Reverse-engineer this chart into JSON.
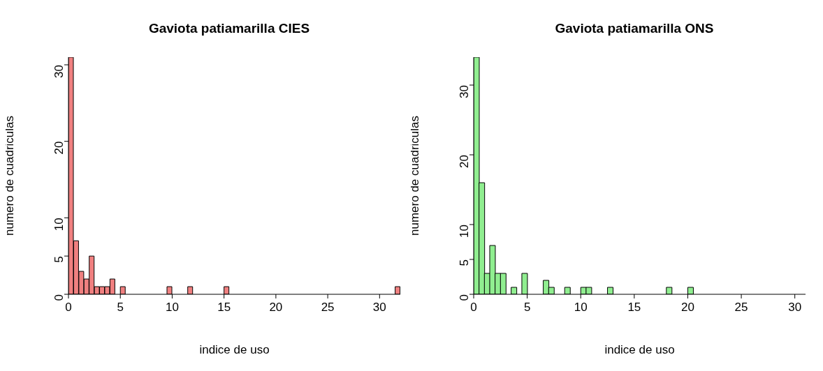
{
  "chart_data": [
    {
      "type": "histogram",
      "title": "Gaviota patiamarilla CIES",
      "xlabel": "indice de uso",
      "ylabel": "numero de cuadriculas",
      "color": "#f08080",
      "bins": [
        0,
        0.5,
        1,
        1.5,
        2,
        2.5,
        3,
        3.5,
        4,
        4.5,
        5,
        5.5,
        6,
        6.5,
        7,
        7.5,
        8,
        8.5,
        9,
        9.5,
        10,
        10.5,
        11,
        11.5,
        12,
        12.5,
        13,
        13.5,
        14,
        14.5,
        15,
        15.5,
        16,
        16.5,
        17,
        17.5,
        18,
        18.5,
        19,
        19.5,
        20,
        20.5,
        21,
        21.5,
        22,
        22.5,
        23,
        23.5,
        24,
        24.5,
        25,
        25.5,
        26,
        26.5,
        27,
        27.5,
        28,
        28.5,
        29,
        29.5,
        30,
        30.5,
        31,
        31.5,
        32
      ],
      "values": [
        31,
        7,
        3,
        2,
        5,
        1,
        1,
        1,
        2,
        0,
        1,
        0,
        0,
        0,
        0,
        0,
        0,
        0,
        0,
        1,
        0,
        0,
        0,
        1,
        0,
        0,
        0,
        0,
        0,
        0,
        1,
        0,
        0,
        0,
        0,
        0,
        0,
        0,
        0,
        0,
        0,
        0,
        0,
        0,
        0,
        0,
        0,
        0,
        0,
        0,
        0,
        0,
        0,
        0,
        0,
        0,
        0,
        0,
        0,
        0,
        0,
        0,
        0,
        1
      ],
      "xlim": [
        0,
        32
      ],
      "xticks": [
        0,
        5,
        10,
        15,
        20,
        25,
        30
      ],
      "ylim": [
        0,
        31
      ],
      "yticks": [
        0,
        5,
        10,
        20,
        30
      ]
    },
    {
      "type": "histogram",
      "title": "Gaviota patiamarilla ONS",
      "xlabel": "indice de uso",
      "ylabel": "numero de cuadriculas",
      "color": "#90ee90",
      "bins": [
        0,
        0.5,
        1,
        1.5,
        2,
        2.5,
        3,
        3.5,
        4,
        4.5,
        5,
        5.5,
        6,
        6.5,
        7,
        7.5,
        8,
        8.5,
        9,
        9.5,
        10,
        10.5,
        11,
        11.5,
        12,
        12.5,
        13,
        13.5,
        14,
        14.5,
        15,
        15.5,
        16,
        16.5,
        17,
        17.5,
        18,
        18.5,
        19,
        19.5,
        20,
        20.5,
        21,
        21.5,
        22,
        22.5,
        23,
        23.5,
        24,
        24.5,
        25,
        25.5,
        26,
        26.5,
        27,
        27.5,
        28,
        28.5,
        29,
        29.5,
        30,
        30.5,
        31
      ],
      "values": [
        34,
        16,
        3,
        7,
        3,
        3,
        0,
        1,
        0,
        3,
        0,
        0,
        0,
        2,
        1,
        0,
        0,
        1,
        0,
        0,
        1,
        1,
        0,
        0,
        0,
        1,
        0,
        0,
        0,
        0,
        0,
        0,
        0,
        0,
        0,
        0,
        1,
        0,
        0,
        0,
        1,
        0,
        0,
        0,
        0,
        0,
        0,
        0,
        0,
        0,
        0,
        0,
        0,
        0,
        0,
        0,
        0,
        0,
        0,
        0,
        0,
        0
      ],
      "xlim": [
        0,
        31
      ],
      "xticks": [
        0,
        5,
        10,
        15,
        20,
        25,
        30
      ],
      "ylim": [
        0,
        34
      ],
      "yticks": [
        0,
        5,
        10,
        20,
        30
      ]
    }
  ]
}
